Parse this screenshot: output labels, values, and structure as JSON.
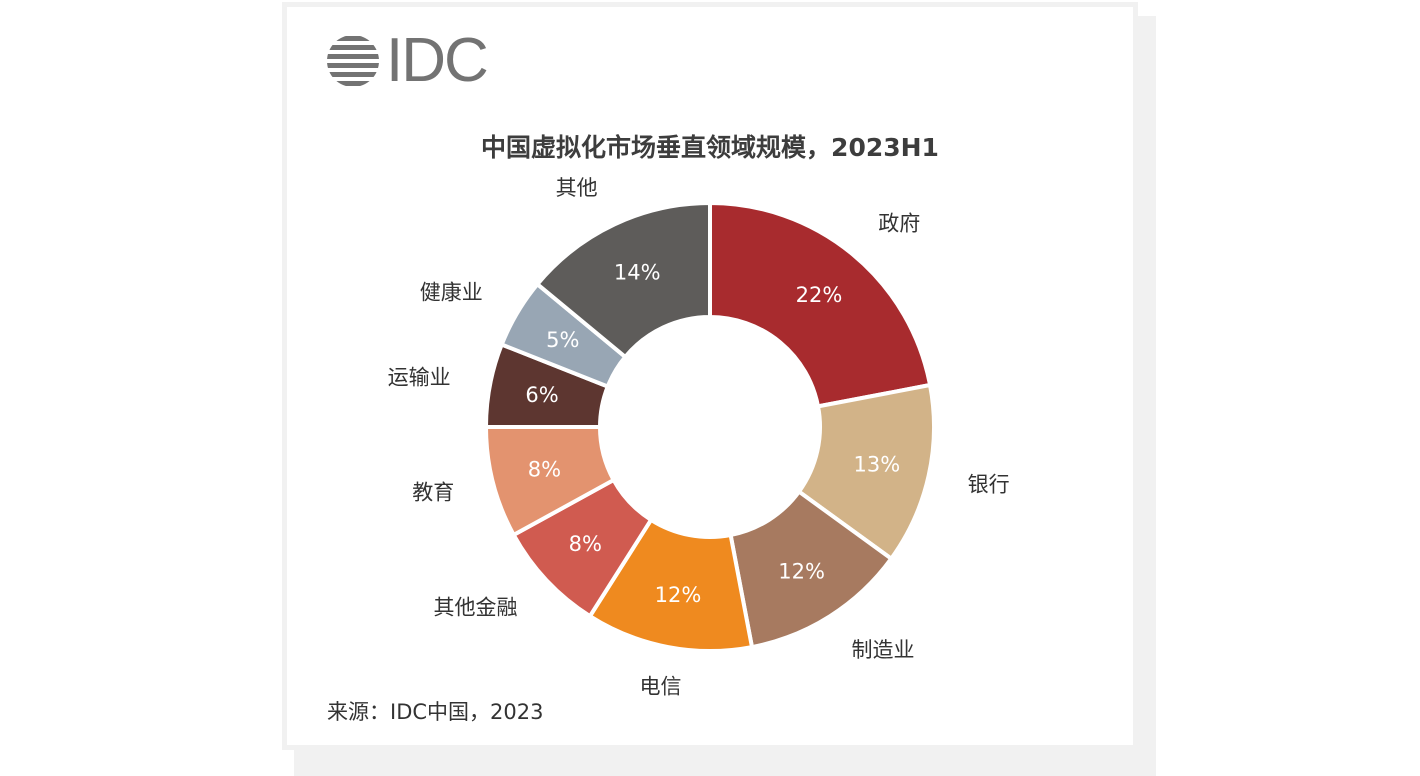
{
  "logo": {
    "text": "IDC"
  },
  "source": "来源：IDC中国，2023",
  "chart_data": {
    "type": "pie",
    "donut": true,
    "title": "中国虚拟化市场垂直领域规模，2023H1",
    "slices": [
      {
        "label": "政府",
        "value": 22,
        "value_label": "22%",
        "color": "#a82b2e"
      },
      {
        "label": "银行",
        "value": 13,
        "value_label": "13%",
        "color": "#d2b388"
      },
      {
        "label": "制造业",
        "value": 12,
        "value_label": "12%",
        "color": "#a77a60"
      },
      {
        "label": "电信",
        "value": 12,
        "value_label": "12%",
        "color": "#ef8a1f"
      },
      {
        "label": "其他金融",
        "value": 8,
        "value_label": "8%",
        "color": "#d05b50"
      },
      {
        "label": "教育",
        "value": 8,
        "value_label": "8%",
        "color": "#e3936f"
      },
      {
        "label": "运输业",
        "value": 6,
        "value_label": "6%",
        "color": "#5d3630"
      },
      {
        "label": "健康业",
        "value": 5,
        "value_label": "5%",
        "color": "#98a6b4"
      },
      {
        "label": "其他",
        "value": 14,
        "value_label": "14%",
        "color": "#5e5c5a"
      }
    ]
  }
}
